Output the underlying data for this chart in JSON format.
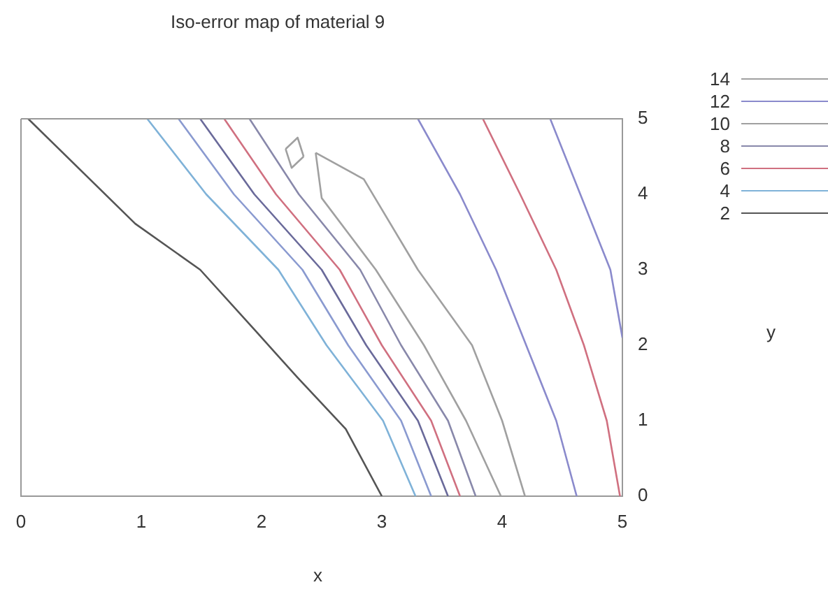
{
  "chart_data": {
    "type": "line",
    "title": "Iso-error map of material 9",
    "xlabel": "x",
    "annotations": [
      "y"
    ],
    "xlim": [
      0,
      5
    ],
    "ylim": [
      0,
      5
    ],
    "xticks": [
      0,
      1,
      2,
      3,
      4,
      5
    ],
    "yticks": [
      0,
      1,
      2,
      3,
      4,
      5
    ],
    "grid": false,
    "legend": "top right",
    "series": [
      {
        "name": "14",
        "color": "#a0a0a0",
        "x": [
          2.2,
          2.3,
          2.35
        ],
        "values": [
          4.6,
          4.75,
          4.5
        ]
      },
      {
        "color": "#a0a0a0",
        "x": [
          2.2,
          2.25,
          2.35
        ],
        "values": [
          4.6,
          4.35,
          4.5
        ]
      },
      {
        "name": "12",
        "color": "#8a8acc",
        "x": [
          3.3,
          3.65,
          3.95,
          4.2,
          4.45,
          4.62
        ],
        "values": [
          5,
          4,
          3,
          2,
          1,
          0
        ]
      },
      {
        "name": "10",
        "color": "#a0a0a0",
        "x": [
          2.45,
          2.5,
          2.95,
          3.35,
          3.7,
          3.99
        ],
        "values": [
          4.55,
          3.95,
          3,
          2,
          1,
          0
        ]
      },
      {
        "color": "#a0a0a0",
        "x": [
          2.45,
          2.85,
          3.3,
          3.75,
          4.0,
          4.19
        ],
        "values": [
          4.55,
          4.2,
          3,
          2,
          1,
          0
        ]
      },
      {
        "name": "8",
        "color": "#8888aa",
        "x": [
          1.9,
          2.31,
          2.82,
          3.16,
          3.55,
          3.78
        ],
        "values": [
          5,
          4,
          3,
          2,
          1,
          0
        ]
      },
      {
        "name": "6",
        "color": "#d07080",
        "x": [
          1.69,
          2.12,
          2.65,
          3.0,
          3.41,
          3.65
        ],
        "values": [
          5,
          4,
          3,
          2,
          1,
          0
        ]
      },
      {
        "name": "4",
        "color": "#7fb2d8",
        "x": [
          1.05,
          1.54,
          2.14,
          2.54,
          3.01,
          3.28
        ],
        "values": [
          5,
          4,
          3,
          2,
          1,
          0
        ]
      },
      {
        "name": "2",
        "color": "#555555",
        "x": [
          0.06,
          0.95,
          1.49,
          1.95,
          2.3,
          2.7,
          3.0
        ],
        "values": [
          5,
          3.61,
          3.0,
          2.19,
          1.57,
          0.89,
          0
        ]
      },
      {
        "color": "#8a9ad0",
        "x": [
          1.31,
          1.77,
          2.34,
          2.72,
          3.16,
          3.41
        ],
        "values": [
          5,
          4,
          3,
          2,
          1,
          0
        ]
      },
      {
        "color": "#6a6a9a",
        "x": [
          1.49,
          1.94,
          2.5,
          2.87,
          3.3,
          3.55
        ],
        "values": [
          5,
          4,
          3,
          2,
          1,
          0
        ]
      },
      {
        "color": "#d07080",
        "x": [
          3.84,
          4.15,
          4.45,
          4.68,
          4.87,
          4.98
        ],
        "values": [
          5,
          4,
          3,
          2,
          1,
          0
        ]
      },
      {
        "color": "#8a8acc",
        "x": [
          4.4,
          4.65,
          4.9,
          5.0
        ],
        "values": [
          5,
          4,
          3,
          2.1
        ]
      }
    ]
  }
}
